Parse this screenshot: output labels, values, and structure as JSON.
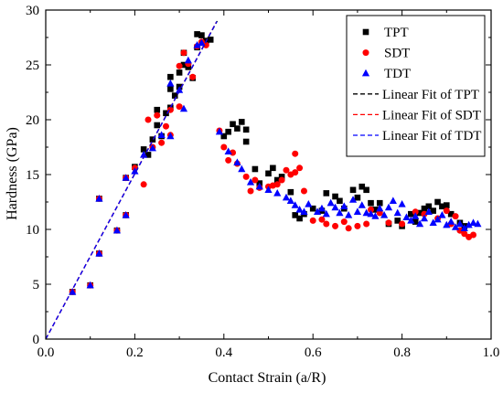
{
  "chart_data": {
    "type": "scatter",
    "xlabel": "Contact Strain (a/R)",
    "ylabel": "Hardness (GPa)",
    "xlim": [
      0.0,
      1.0
    ],
    "ylim": [
      0,
      30
    ],
    "xticks": [
      "0.0",
      "0.2",
      "0.4",
      "0.6",
      "0.8",
      "1.0"
    ],
    "yticks": [
      "0",
      "5",
      "10",
      "15",
      "20",
      "25",
      "30"
    ],
    "grid": false,
    "legend_position": "top-right",
    "series": [
      {
        "name": "TPT",
        "marker": "square",
        "color": "#000000",
        "points": [
          [
            0.06,
            4.3
          ],
          [
            0.1,
            4.9
          ],
          [
            0.12,
            7.8
          ],
          [
            0.12,
            12.8
          ],
          [
            0.16,
            9.9
          ],
          [
            0.18,
            11.3
          ],
          [
            0.18,
            14.7
          ],
          [
            0.2,
            15.7
          ],
          [
            0.22,
            17.3
          ],
          [
            0.23,
            16.8
          ],
          [
            0.24,
            18.2
          ],
          [
            0.25,
            20.9
          ],
          [
            0.25,
            19.5
          ],
          [
            0.26,
            18.5
          ],
          [
            0.27,
            20.6
          ],
          [
            0.28,
            21.1
          ],
          [
            0.28,
            22.8
          ],
          [
            0.28,
            23.9
          ],
          [
            0.29,
            22.2
          ],
          [
            0.3,
            23.0
          ],
          [
            0.3,
            24.3
          ],
          [
            0.31,
            25.0
          ],
          [
            0.31,
            26.1
          ],
          [
            0.32,
            24.8
          ],
          [
            0.33,
            23.8
          ],
          [
            0.34,
            26.6
          ],
          [
            0.34,
            27.8
          ],
          [
            0.35,
            27.7
          ],
          [
            0.36,
            27.2
          ],
          [
            0.37,
            27.3
          ],
          [
            0.4,
            18.5
          ],
          [
            0.41,
            18.9
          ],
          [
            0.42,
            19.6
          ],
          [
            0.43,
            19.2
          ],
          [
            0.44,
            19.8
          ],
          [
            0.45,
            18.0
          ],
          [
            0.45,
            19.1
          ],
          [
            0.47,
            15.5
          ],
          [
            0.48,
            14.2
          ],
          [
            0.5,
            15.1
          ],
          [
            0.51,
            15.6
          ],
          [
            0.52,
            14.5
          ],
          [
            0.53,
            14.8
          ],
          [
            0.55,
            13.4
          ],
          [
            0.56,
            11.3
          ],
          [
            0.57,
            11.0
          ],
          [
            0.58,
            11.4
          ],
          [
            0.6,
            11.9
          ],
          [
            0.62,
            11.7
          ],
          [
            0.63,
            13.3
          ],
          [
            0.65,
            13.0
          ],
          [
            0.66,
            12.6
          ],
          [
            0.67,
            11.9
          ],
          [
            0.69,
            13.6
          ],
          [
            0.7,
            12.9
          ],
          [
            0.71,
            13.9
          ],
          [
            0.72,
            13.6
          ],
          [
            0.73,
            12.4
          ],
          [
            0.74,
            11.8
          ],
          [
            0.75,
            12.4
          ],
          [
            0.77,
            10.5
          ],
          [
            0.79,
            10.8
          ],
          [
            0.8,
            10.3
          ],
          [
            0.82,
            11.4
          ],
          [
            0.83,
            10.7
          ],
          [
            0.84,
            11.5
          ],
          [
            0.85,
            11.9
          ],
          [
            0.86,
            12.1
          ],
          [
            0.87,
            11.7
          ],
          [
            0.88,
            12.5
          ],
          [
            0.89,
            12.1
          ],
          [
            0.9,
            12.2
          ],
          [
            0.91,
            11.4
          ],
          [
            0.93,
            10.6
          ],
          [
            0.94,
            10.3
          ]
        ]
      },
      {
        "name": "SDT",
        "marker": "circle",
        "color": "#ff0000",
        "points": [
          [
            0.06,
            4.3
          ],
          [
            0.1,
            4.9
          ],
          [
            0.12,
            7.8
          ],
          [
            0.12,
            12.8
          ],
          [
            0.16,
            9.9
          ],
          [
            0.18,
            11.3
          ],
          [
            0.18,
            14.7
          ],
          [
            0.2,
            15.6
          ],
          [
            0.22,
            14.1
          ],
          [
            0.23,
            20.0
          ],
          [
            0.24,
            17.5
          ],
          [
            0.25,
            20.4
          ],
          [
            0.26,
            17.9
          ],
          [
            0.27,
            19.4
          ],
          [
            0.28,
            18.6
          ],
          [
            0.28,
            20.9
          ],
          [
            0.3,
            24.9
          ],
          [
            0.3,
            21.2
          ],
          [
            0.31,
            26.1
          ],
          [
            0.32,
            25.1
          ],
          [
            0.33,
            23.9
          ],
          [
            0.34,
            26.7
          ],
          [
            0.35,
            27.1
          ],
          [
            0.36,
            26.8
          ],
          [
            0.39,
            19.0
          ],
          [
            0.4,
            17.5
          ],
          [
            0.41,
            16.3
          ],
          [
            0.42,
            17.0
          ],
          [
            0.43,
            16.0
          ],
          [
            0.45,
            14.8
          ],
          [
            0.46,
            13.5
          ],
          [
            0.47,
            14.5
          ],
          [
            0.48,
            13.8
          ],
          [
            0.5,
            13.9
          ],
          [
            0.51,
            14.0
          ],
          [
            0.52,
            14.1
          ],
          [
            0.53,
            14.5
          ],
          [
            0.54,
            15.4
          ],
          [
            0.55,
            15.0
          ],
          [
            0.56,
            15.2
          ],
          [
            0.56,
            16.9
          ],
          [
            0.57,
            15.6
          ],
          [
            0.58,
            13.5
          ],
          [
            0.6,
            10.8
          ],
          [
            0.62,
            10.9
          ],
          [
            0.63,
            10.5
          ],
          [
            0.65,
            10.3
          ],
          [
            0.67,
            10.7
          ],
          [
            0.68,
            10.1
          ],
          [
            0.7,
            10.3
          ],
          [
            0.72,
            10.5
          ],
          [
            0.73,
            11.8
          ],
          [
            0.75,
            11.5
          ],
          [
            0.77,
            10.6
          ],
          [
            0.8,
            10.5
          ],
          [
            0.83,
            11.6
          ],
          [
            0.85,
            11.4
          ],
          [
            0.88,
            11.0
          ],
          [
            0.9,
            11.7
          ],
          [
            0.91,
            10.5
          ],
          [
            0.92,
            11.2
          ],
          [
            0.93,
            9.9
          ],
          [
            0.94,
            9.6
          ],
          [
            0.95,
            9.3
          ],
          [
            0.96,
            9.5
          ]
        ]
      },
      {
        "name": "TDT",
        "marker": "triangle",
        "color": "#0000ff",
        "points": [
          [
            0.06,
            4.3
          ],
          [
            0.1,
            4.9
          ],
          [
            0.12,
            7.8
          ],
          [
            0.12,
            12.8
          ],
          [
            0.16,
            9.9
          ],
          [
            0.18,
            11.3
          ],
          [
            0.18,
            14.7
          ],
          [
            0.2,
            15.3
          ],
          [
            0.22,
            16.8
          ],
          [
            0.24,
            17.4
          ],
          [
            0.26,
            18.6
          ],
          [
            0.28,
            18.5
          ],
          [
            0.28,
            23.3
          ],
          [
            0.3,
            22.7
          ],
          [
            0.31,
            21.0
          ],
          [
            0.32,
            25.4
          ],
          [
            0.34,
            26.8
          ],
          [
            0.35,
            27.0
          ],
          [
            0.39,
            18.9
          ],
          [
            0.41,
            17.1
          ],
          [
            0.43,
            16.1
          ],
          [
            0.44,
            15.5
          ],
          [
            0.46,
            14.3
          ],
          [
            0.48,
            13.9
          ],
          [
            0.5,
            13.6
          ],
          [
            0.52,
            13.3
          ],
          [
            0.54,
            12.9
          ],
          [
            0.55,
            12.6
          ],
          [
            0.56,
            12.2
          ],
          [
            0.57,
            11.8
          ],
          [
            0.58,
            11.6
          ],
          [
            0.59,
            12.3
          ],
          [
            0.61,
            11.6
          ],
          [
            0.62,
            11.9
          ],
          [
            0.63,
            11.4
          ],
          [
            0.64,
            12.4
          ],
          [
            0.65,
            12.0
          ],
          [
            0.66,
            11.5
          ],
          [
            0.67,
            12.1
          ],
          [
            0.68,
            11.3
          ],
          [
            0.69,
            12.7
          ],
          [
            0.7,
            11.6
          ],
          [
            0.71,
            12.2
          ],
          [
            0.72,
            11.5
          ],
          [
            0.73,
            11.4
          ],
          [
            0.74,
            11.2
          ],
          [
            0.75,
            11.9
          ],
          [
            0.76,
            11.3
          ],
          [
            0.77,
            12.0
          ],
          [
            0.78,
            12.6
          ],
          [
            0.79,
            11.5
          ],
          [
            0.8,
            12.3
          ],
          [
            0.81,
            11.1
          ],
          [
            0.82,
            10.8
          ],
          [
            0.83,
            11.2
          ],
          [
            0.84,
            10.5
          ],
          [
            0.85,
            11.0
          ],
          [
            0.86,
            11.6
          ],
          [
            0.87,
            10.6
          ],
          [
            0.88,
            10.9
          ],
          [
            0.89,
            11.3
          ],
          [
            0.9,
            10.4
          ],
          [
            0.91,
            10.7
          ],
          [
            0.92,
            10.2
          ],
          [
            0.93,
            10.5
          ],
          [
            0.94,
            10.1
          ],
          [
            0.95,
            10.4
          ],
          [
            0.96,
            10.6
          ],
          [
            0.97,
            10.5
          ]
        ]
      },
      {
        "name": "Linear Fit of TPT",
        "type": "line",
        "dash": true,
        "color": "#000000",
        "points": [
          [
            0.0,
            0.0
          ],
          [
            0.385,
            29.0
          ]
        ]
      },
      {
        "name": "Linear Fit of SDT",
        "type": "line",
        "dash": true,
        "color": "#ff0000",
        "points": [
          [
            0.0,
            0.0
          ],
          [
            0.383,
            28.9
          ]
        ]
      },
      {
        "name": "Linear Fit of TDT",
        "type": "line",
        "dash": true,
        "color": "#0000ff",
        "points": [
          [
            0.0,
            0.0
          ],
          [
            0.384,
            28.95
          ]
        ]
      }
    ]
  }
}
